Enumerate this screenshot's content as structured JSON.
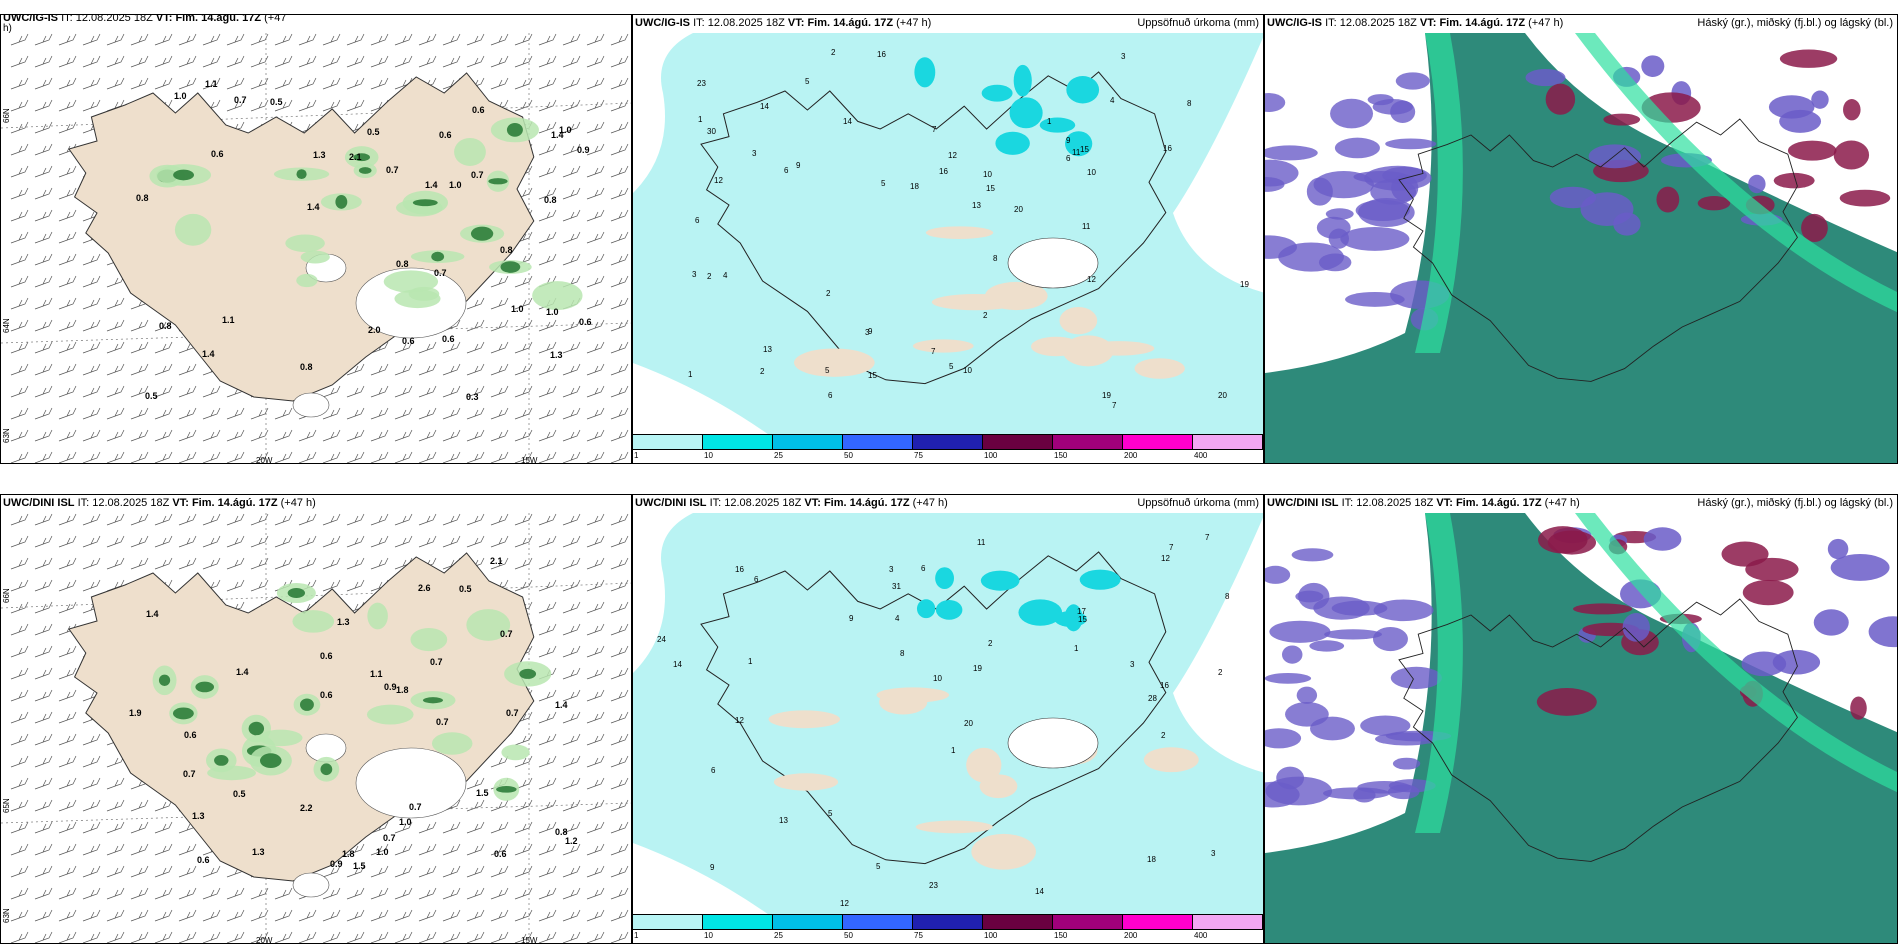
{
  "panels": [
    {
      "id": "p1",
      "model": "UWC/IG-IS",
      "it_label": "IT:",
      "it": "12.08.2025 18Z",
      "vt_label": "VT:",
      "vt": "Fim. 14.ágú. 17Z",
      "lead": "(+47",
      "lead_wrap": "h)",
      "right_title": "",
      "lat_labels": [
        "66N",
        "64N",
        "63N"
      ],
      "lon_labels": [
        "20W",
        "15W"
      ],
      "values": [
        "0.6",
        "0.6",
        "1.4",
        "0.8",
        "1.4",
        "1.4",
        "0.5",
        "0.8",
        "1.0",
        "0.8",
        "1.1",
        "1.0",
        "0.8",
        "2.1",
        "1.0",
        "0.6",
        "2.0",
        "1.3",
        "1.0",
        "0.7",
        "1.4",
        "1.1",
        "0.7",
        "0.9",
        "0.6",
        "0.8",
        "1.0",
        "0.6",
        "0.8",
        "0.5",
        "0.6",
        "1.3",
        "0.7",
        "0.3",
        "0.7",
        "0.5"
      ]
    },
    {
      "id": "p2",
      "model": "UWC/IG-IS",
      "it_label": "IT:",
      "it": "12.08.2025 18Z",
      "vt_label": "VT:",
      "vt": "Fim. 14.ágú. 17Z",
      "lead": "(+47 h)",
      "right_title": "Uppsöfnuð úrkoma (mm)",
      "values": [
        "5",
        "10",
        "12",
        "7",
        "6",
        "9",
        "14",
        "15",
        "11",
        "5",
        "12",
        "10",
        "19",
        "20",
        "30",
        "16",
        "23",
        "19",
        "13",
        "14",
        "16",
        "18",
        "20",
        "12",
        "15",
        "9",
        "11",
        "8",
        "7",
        "4",
        "3",
        "2",
        "6",
        "10",
        "9",
        "8",
        "13",
        "2",
        "5",
        "3",
        "1",
        "4",
        "7",
        "6",
        "3",
        "2",
        "15",
        "16",
        "5",
        "6",
        "3",
        "2",
        "1",
        "1",
        "2"
      ]
    },
    {
      "id": "p3",
      "model": "UWC/IG-IS",
      "it_label": "IT:",
      "it": "12.08.2025 18Z",
      "vt_label": "VT:",
      "vt": "Fim. 14.ágú. 17Z",
      "lead": "(+47 h)",
      "right_title": "Háský (gr.), miðský (fj.bl.) og lágský (bl.)"
    },
    {
      "id": "p4",
      "model": "UWC/DINI ISL",
      "it_label": "IT:",
      "it": "12.08.2025 18Z",
      "vt_label": "VT:",
      "vt": "Fim. 14.ágú. 17Z",
      "lead": "(+47 h)",
      "right_title": "",
      "lat_labels": [
        "66N",
        "65N",
        "63N"
      ],
      "lon_labels": [
        "20W",
        "15W"
      ],
      "values": [
        "0.5",
        "0.7",
        "1.5",
        "1.8",
        "1.0",
        "1.2",
        "0.7",
        "1.4",
        "1.3",
        "0.7",
        "0.6",
        "2.6",
        "0.7",
        "0.9",
        "0.6",
        "0.6",
        "1.1",
        "1.3",
        "0.6",
        "2.2",
        "0.6",
        "2.1",
        "0.9",
        "0.7",
        "1.8",
        "1.4",
        "1.9",
        "1.3",
        "1.0",
        "0.7",
        "0.7",
        "1.4",
        "0.5",
        "0.8",
        "1.5"
      ]
    },
    {
      "id": "p5",
      "model": "UWC/DINI ISL",
      "it_label": "IT:",
      "it": "12.08.2025 18Z",
      "vt_label": "VT:",
      "vt": "Fim. 14.ágú. 17Z",
      "lead": "(+47 h)",
      "right_title": "Uppsöfnuð úrkoma (mm)",
      "values": [
        "3",
        "5",
        "7",
        "6",
        "9",
        "12",
        "14",
        "16",
        "23",
        "15",
        "18",
        "17",
        "24",
        "20",
        "31",
        "28",
        "19",
        "12",
        "11",
        "13",
        "8",
        "10",
        "7",
        "4",
        "3",
        "2",
        "6",
        "5",
        "1",
        "14",
        "16",
        "12",
        "9",
        "8",
        "6",
        "3",
        "2",
        "1",
        "2",
        "1"
      ]
    },
    {
      "id": "p6",
      "model": "UWC/DINI ISL",
      "it_label": "IT:",
      "it": "12.08.2025 18Z",
      "vt_label": "VT:",
      "vt": "Fim. 14.ágú. 17Z",
      "lead": "(+47 h)",
      "right_title": "Háský (gr.), miðský (fj.bl.) og lágský (bl.)"
    }
  ],
  "colorbar": {
    "ticks": [
      "1",
      "10",
      "25",
      "50",
      "75",
      "100",
      "150",
      "200",
      "400"
    ],
    "colors": [
      "#b8f5f5",
      "#00e5e5",
      "#00bfe8",
      "#3366ff",
      "#2020b0",
      "#6a0040",
      "#a0007a",
      "#ff00cc",
      "#f2a6f2"
    ]
  },
  "colors": {
    "land": "#eedfcc",
    "precip_light": "#b9f3f3",
    "precip_mid": "#1ad7e0",
    "green_light": "#b9e6b0",
    "green_dark": "#2e7d3a",
    "cloud_high": "#2e8a7a",
    "cloud_mid": "#6a5cc8",
    "cloud_low": "#8b1a4a",
    "cloud_band": "#2ee0a0"
  }
}
